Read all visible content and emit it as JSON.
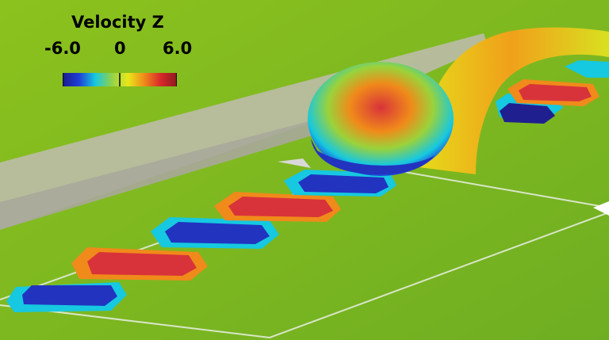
{
  "legend": {
    "title": "Velocity Z",
    "min_label": "-6.0",
    "mid_label": "0",
    "max_label": "6.0",
    "range": [
      -6.0,
      6.0
    ],
    "colormap": [
      "#1a1a8c",
      "#1f3fd6",
      "#16c8e0",
      "#8fd24a",
      "#e8e81a",
      "#f08a1a",
      "#d8282a",
      "#8e1a1e"
    ]
  },
  "colors": {
    "background": "#7bb51e",
    "wall": "#b9b9a6",
    "positive": "#d8333a",
    "negative": "#2233c0",
    "edge": "#1ec8d8",
    "ring": "#f08a1a"
  }
}
